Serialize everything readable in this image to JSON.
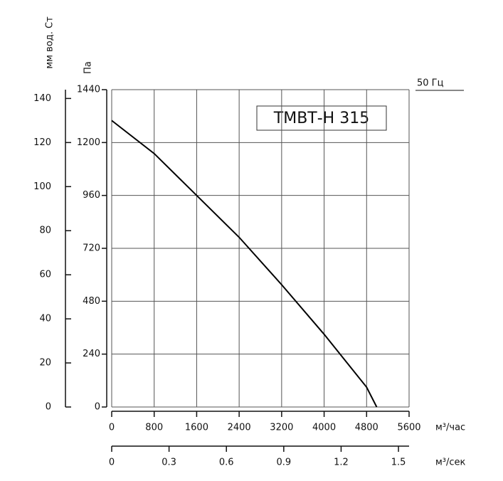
{
  "chart_data": {
    "type": "line",
    "title": "ТМВТ-Н 315",
    "annotation": "50 Гц",
    "x_label": "м³/час",
    "x2_label": "м³/сек",
    "y_label": "Па",
    "y2_label": "мм вод. Ст",
    "x": [
      0,
      800,
      1600,
      2400,
      3200,
      4000,
      4800,
      4990
    ],
    "series": [
      {
        "color": "#000000",
        "values": [
          1300,
          1150,
          960,
          770,
          555,
          330,
          90,
          0
        ]
      }
    ],
    "xlim": [
      0,
      5600
    ],
    "xticks": [
      0,
      800,
      1600,
      2400,
      3200,
      4000,
      4800,
      5600
    ],
    "x2lim": [
      0,
      1.5556
    ],
    "x2ticks": [
      0,
      0.3,
      0.6,
      0.9,
      1.2,
      1.5
    ],
    "ylim": [
      0,
      1440
    ],
    "yticks": [
      0,
      240,
      480,
      720,
      960,
      1200,
      1440
    ],
    "y2lim": [
      0,
      144
    ],
    "y2ticks": [
      0,
      20,
      40,
      60,
      80,
      100,
      120,
      140
    ],
    "grid": true
  }
}
